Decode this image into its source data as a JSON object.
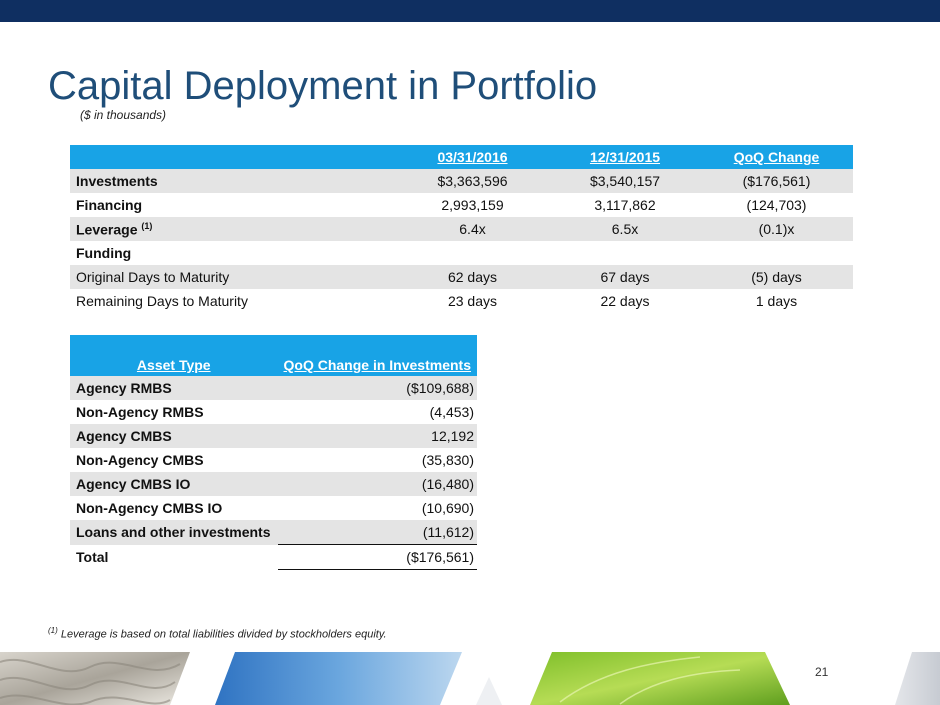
{
  "slide": {
    "title": "Capital Deployment in Portfolio",
    "subtitle": "($ in thousands)",
    "page_number": "21",
    "footnote_marker": "(1)",
    "footnote_text": "Leverage is based on total liabilities divided by stockholders equity."
  },
  "table1": {
    "headers": [
      "03/31/2016",
      "12/31/2015",
      "QoQ Change"
    ],
    "rows": [
      {
        "label": "Investments",
        "sup": "",
        "values": [
          "$3,363,596",
          "$3,540,157",
          "($176,561)"
        ]
      },
      {
        "label": "Financing",
        "sup": "",
        "values": [
          "2,993,159",
          "3,117,862",
          "(124,703)"
        ]
      },
      {
        "label": "Leverage",
        "sup": "(1)",
        "values": [
          "6.4x",
          "6.5x",
          "(0.1)x"
        ]
      },
      {
        "label": "Funding",
        "sup": "",
        "values": [
          "",
          "",
          ""
        ]
      },
      {
        "label": "Original Days to Maturity",
        "sup": "",
        "values": [
          "62 days",
          "67 days",
          "(5) days"
        ]
      },
      {
        "label": "Remaining Days to Maturity",
        "sup": "",
        "values": [
          "23 days",
          "22 days",
          "1 days"
        ]
      }
    ]
  },
  "table2": {
    "header_asset": "Asset Type",
    "header_change": "QoQ Change in Investments",
    "rows": [
      {
        "label": "Agency RMBS",
        "value": "($109,688)"
      },
      {
        "label": "Non-Agency RMBS",
        "value": "(4,453)"
      },
      {
        "label": "Agency CMBS",
        "value": "12,192"
      },
      {
        "label": "Non-Agency CMBS",
        "value": "(35,830)"
      },
      {
        "label": "Agency CMBS IO",
        "value": "(16,480)"
      },
      {
        "label": "Non-Agency CMBS IO",
        "value": "(10,690)"
      },
      {
        "label": "Loans and other investments",
        "value": "(11,612)"
      }
    ],
    "total": {
      "label": "Total",
      "value": "($176,561)"
    }
  }
}
